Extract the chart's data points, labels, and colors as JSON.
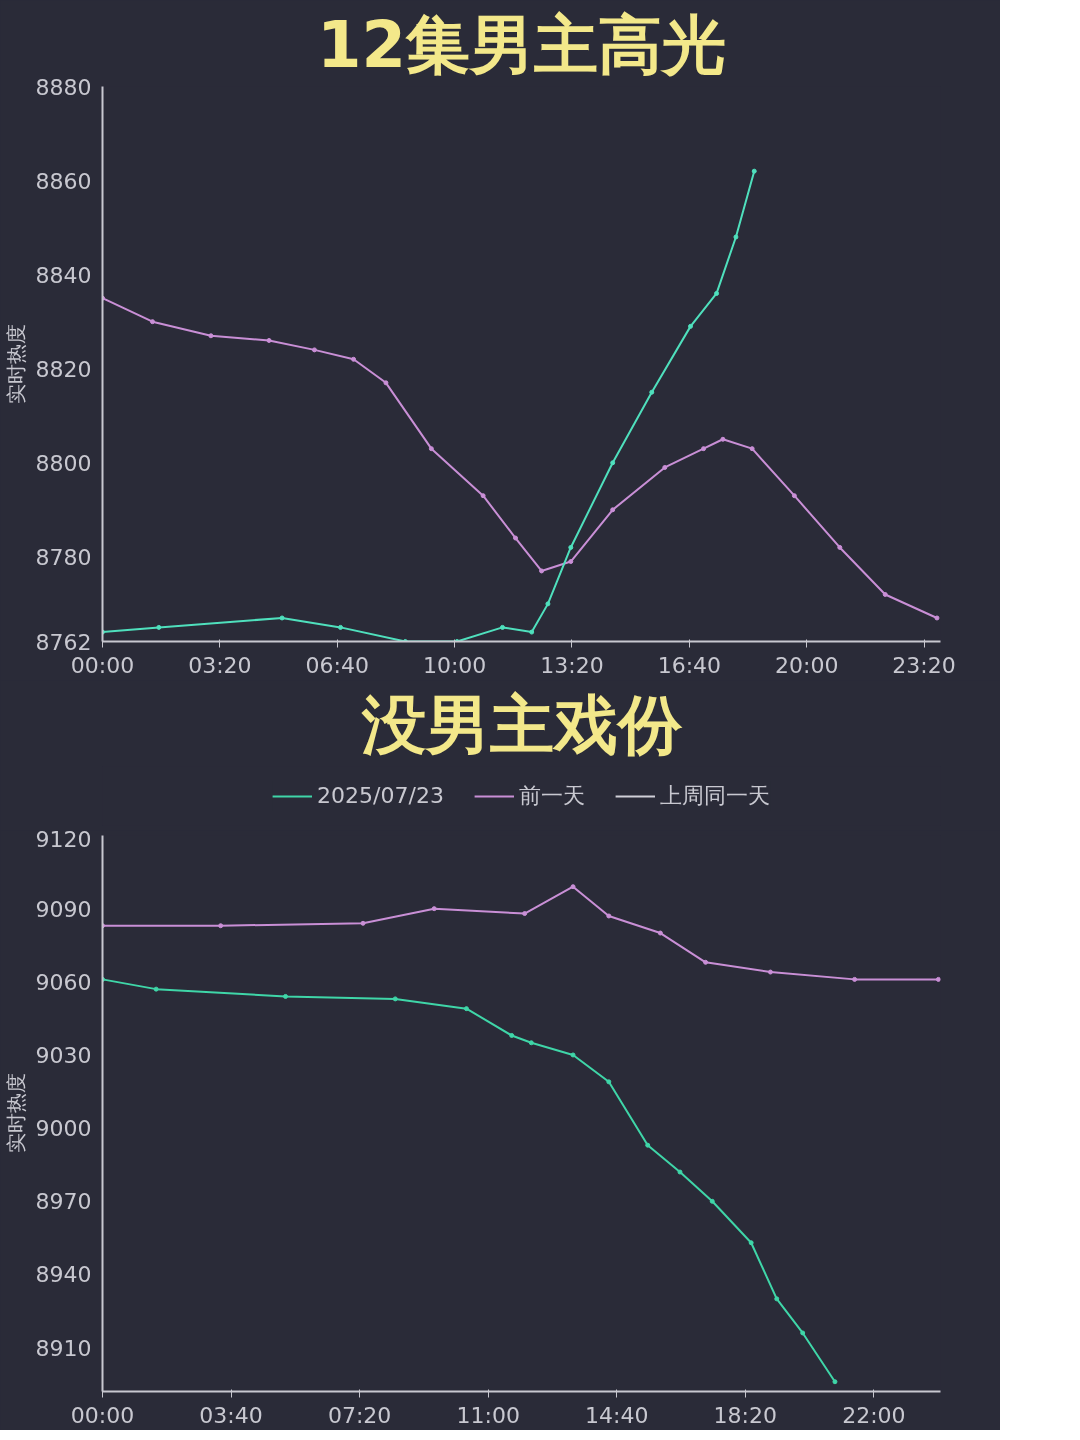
{
  "chart_data": [
    {
      "type": "line",
      "title": "12集男主高光",
      "ylabel": "实时热度",
      "marker": "circle",
      "legend": false,
      "grid": false,
      "xlim": [
        0,
        23.8
      ],
      "xticks": [
        {
          "value": 0,
          "label": "00:00"
        },
        {
          "value": 3.333,
          "label": "03:20"
        },
        {
          "value": 6.667,
          "label": "06:40"
        },
        {
          "value": 10,
          "label": "10:00"
        },
        {
          "value": 13.333,
          "label": "13:20"
        },
        {
          "value": 16.667,
          "label": "16:40"
        },
        {
          "value": 20,
          "label": "20:00"
        },
        {
          "value": 23.333,
          "label": "23:20"
        }
      ],
      "ylim": [
        8762,
        8880
      ],
      "yticks": [
        8762,
        8780,
        8800,
        8820,
        8840,
        8860,
        8880
      ],
      "series": [
        {
          "color": "#c98fd6",
          "x": [
            0,
            1.42,
            3.08,
            4.73,
            6.02,
            7.13,
            8.05,
            9.34,
            10.81,
            11.73,
            12.47,
            13.3,
            14.49,
            15.97,
            17.07,
            17.62,
            18.45,
            19.65,
            20.94,
            22.23,
            23.7
          ],
          "values": [
            8835,
            8830,
            8827,
            8826,
            8824,
            8822,
            8817,
            8803,
            8793,
            8784,
            8777,
            8779,
            8790,
            8799,
            8803,
            8805,
            8803,
            8793,
            8782,
            8772,
            8767
          ]
        },
        {
          "color": "#4fe0bd",
          "x": [
            0,
            1.6,
            5.1,
            6.76,
            8.6,
            10.07,
            11.36,
            12.19,
            12.65,
            13.3,
            14.49,
            15.6,
            16.7,
            17.44,
            17.99,
            18.51
          ],
          "values": [
            8764,
            8765,
            8767,
            8765,
            8762,
            8762,
            8765,
            8764,
            8770,
            8782,
            8800,
            8815,
            8829,
            8836,
            8848,
            8862
          ]
        }
      ]
    },
    {
      "type": "line",
      "title": "没男主戏份",
      "ylabel": "实时热度",
      "marker": "circle",
      "legend": "top",
      "grid": false,
      "xlim": [
        0,
        23.9
      ],
      "xticks": [
        {
          "value": 0,
          "label": "00:00"
        },
        {
          "value": 3.667,
          "label": "03:40"
        },
        {
          "value": 7.333,
          "label": "07:20"
        },
        {
          "value": 11,
          "label": "11:00"
        },
        {
          "value": 14.667,
          "label": "14:40"
        },
        {
          "value": 18.333,
          "label": "18:20"
        },
        {
          "value": 22,
          "label": "22:00"
        }
      ],
      "ylim": [
        8892,
        9120
      ],
      "yticks": [
        8910,
        8940,
        8970,
        9000,
        9030,
        9060,
        9090,
        9120
      ],
      "series": [
        {
          "name": "2025/07/23",
          "color": "#3fd6a8",
          "x": [
            0,
            1.53,
            5.22,
            8.35,
            10.38,
            11.67,
            12.23,
            13.42,
            14.44,
            15.55,
            16.47,
            17.39,
            18.5,
            19.23,
            19.97,
            20.89
          ],
          "values": [
            9061,
            9057,
            9054,
            9053,
            9049,
            9038,
            9035,
            9030,
            9019,
            8993,
            8982,
            8970,
            8953,
            8930,
            8916,
            8896
          ]
        },
        {
          "name": "前一天",
          "color": "#c98fd6",
          "x": [
            0,
            3.37,
            7.43,
            9.46,
            12.04,
            13.42,
            14.44,
            15.91,
            17.2,
            19.05,
            21.45,
            23.84
          ],
          "values": [
            9083,
            9083,
            9084,
            9090,
            9088,
            9099,
            9087,
            9080,
            9068,
            9064,
            9061,
            9061
          ]
        },
        {
          "name": "上周同一天",
          "color": "#d0d0d8"
        }
      ]
    }
  ]
}
